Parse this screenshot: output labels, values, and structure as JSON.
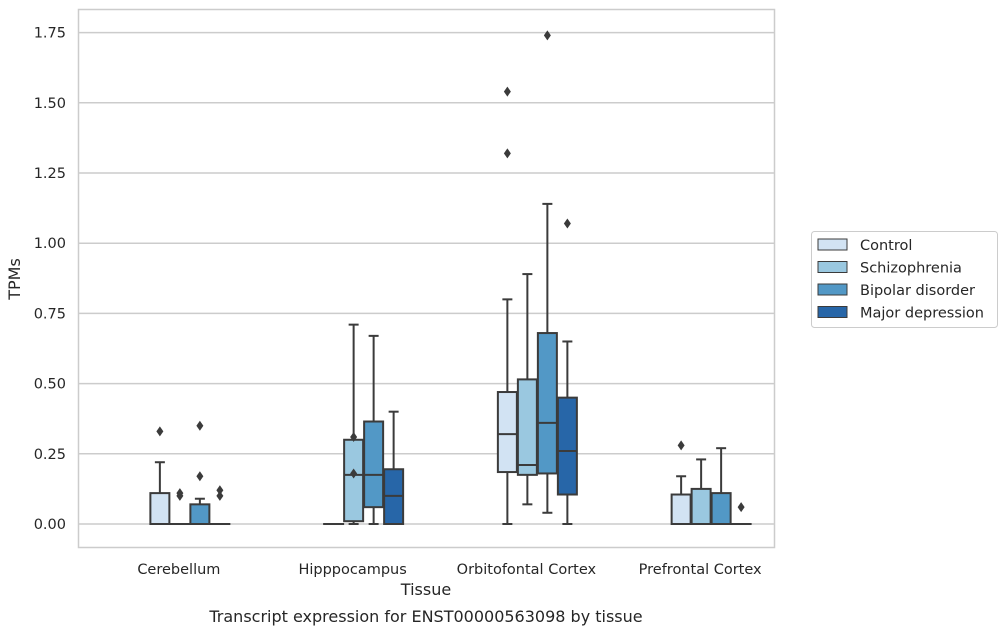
{
  "caption": "Transcript expression for ENST00000563098 by tissue",
  "chart_data": {
    "type": "box",
    "xlabel": "Tissue",
    "ylabel": "TPMs",
    "ylim": [
      -0.085,
      1.83
    ],
    "yticks": [
      0.0,
      0.25,
      0.5,
      0.75,
      1.0,
      1.25,
      1.5,
      1.75
    ],
    "ytick_labels": [
      "0.00",
      "0.25",
      "0.50",
      "0.75",
      "1.00",
      "1.25",
      "1.50",
      "1.75"
    ],
    "grid": true,
    "legend_position": "right",
    "categories": [
      "Cerebellum",
      "Hipppocampus",
      "Orbitofontal Cortex",
      "Prefrontal Cortex"
    ],
    "series": [
      {
        "name": "Control",
        "color": "#d2e3f3",
        "boxes": [
          {
            "whislo": 0.0,
            "q1": 0.0,
            "med": 0.0,
            "q3": 0.11,
            "whishi": 0.22,
            "fliers": [
              0.33
            ]
          },
          {
            "whislo": 0.0,
            "q1": 0.0,
            "med": 0.0,
            "q3": 0.0,
            "whishi": 0.0,
            "fliers": []
          },
          {
            "whislo": 0.0,
            "q1": 0.185,
            "med": 0.32,
            "q3": 0.47,
            "whishi": 0.8,
            "fliers": [
              1.32,
              1.54
            ]
          },
          {
            "whislo": 0.0,
            "q1": 0.0,
            "med": 0.0,
            "q3": 0.105,
            "whishi": 0.17,
            "fliers": [
              0.28
            ]
          }
        ]
      },
      {
        "name": "Schizophrenia",
        "color": "#9ac8e0",
        "boxes": [
          {
            "whislo": 0.0,
            "q1": 0.0,
            "med": 0.0,
            "q3": 0.0,
            "whishi": 0.0,
            "fliers": [
              0.1,
              0.11
            ]
          },
          {
            "whislo": 0.0,
            "q1": 0.01,
            "med": 0.175,
            "q3": 0.3,
            "whishi": 0.71,
            "fliers": [
              0.18,
              0.31
            ]
          },
          {
            "whislo": 0.07,
            "q1": 0.175,
            "med": 0.21,
            "q3": 0.515,
            "whishi": 0.89,
            "fliers": []
          },
          {
            "whislo": 0.0,
            "q1": 0.0,
            "med": 0.0,
            "q3": 0.125,
            "whishi": 0.23,
            "fliers": []
          }
        ]
      },
      {
        "name": "Bipolar disorder",
        "color": "#5298c6",
        "boxes": [
          {
            "whislo": 0.0,
            "q1": 0.0,
            "med": 0.0,
            "q3": 0.07,
            "whishi": 0.09,
            "fliers": [
              0.17,
              0.35
            ]
          },
          {
            "whislo": 0.0,
            "q1": 0.06,
            "med": 0.175,
            "q3": 0.365,
            "whishi": 0.67,
            "fliers": []
          },
          {
            "whislo": 0.04,
            "q1": 0.18,
            "med": 0.36,
            "q3": 0.68,
            "whishi": 1.14,
            "fliers": [
              1.74
            ]
          },
          {
            "whislo": 0.0,
            "q1": 0.0,
            "med": 0.0,
            "q3": 0.11,
            "whishi": 0.27,
            "fliers": []
          }
        ]
      },
      {
        "name": "Major depression",
        "color": "#2766a8",
        "boxes": [
          {
            "whislo": 0.0,
            "q1": 0.0,
            "med": 0.0,
            "q3": 0.0,
            "whishi": 0.0,
            "fliers": [
              0.1,
              0.12
            ]
          },
          {
            "whislo": 0.0,
            "q1": 0.0,
            "med": 0.1,
            "q3": 0.195,
            "whishi": 0.4,
            "fliers": []
          },
          {
            "whislo": 0.0,
            "q1": 0.105,
            "med": 0.26,
            "q3": 0.45,
            "whishi": 0.65,
            "fliers": [
              1.07
            ]
          },
          {
            "whislo": 0.0,
            "q1": 0.0,
            "med": 0.0,
            "q3": 0.0,
            "whishi": 0.0,
            "fliers": [
              0.06
            ]
          }
        ]
      }
    ]
  },
  "colors": {
    "grid": "#cccccc",
    "frame": "#cccccc",
    "box_edge": "#3b3b3b"
  }
}
